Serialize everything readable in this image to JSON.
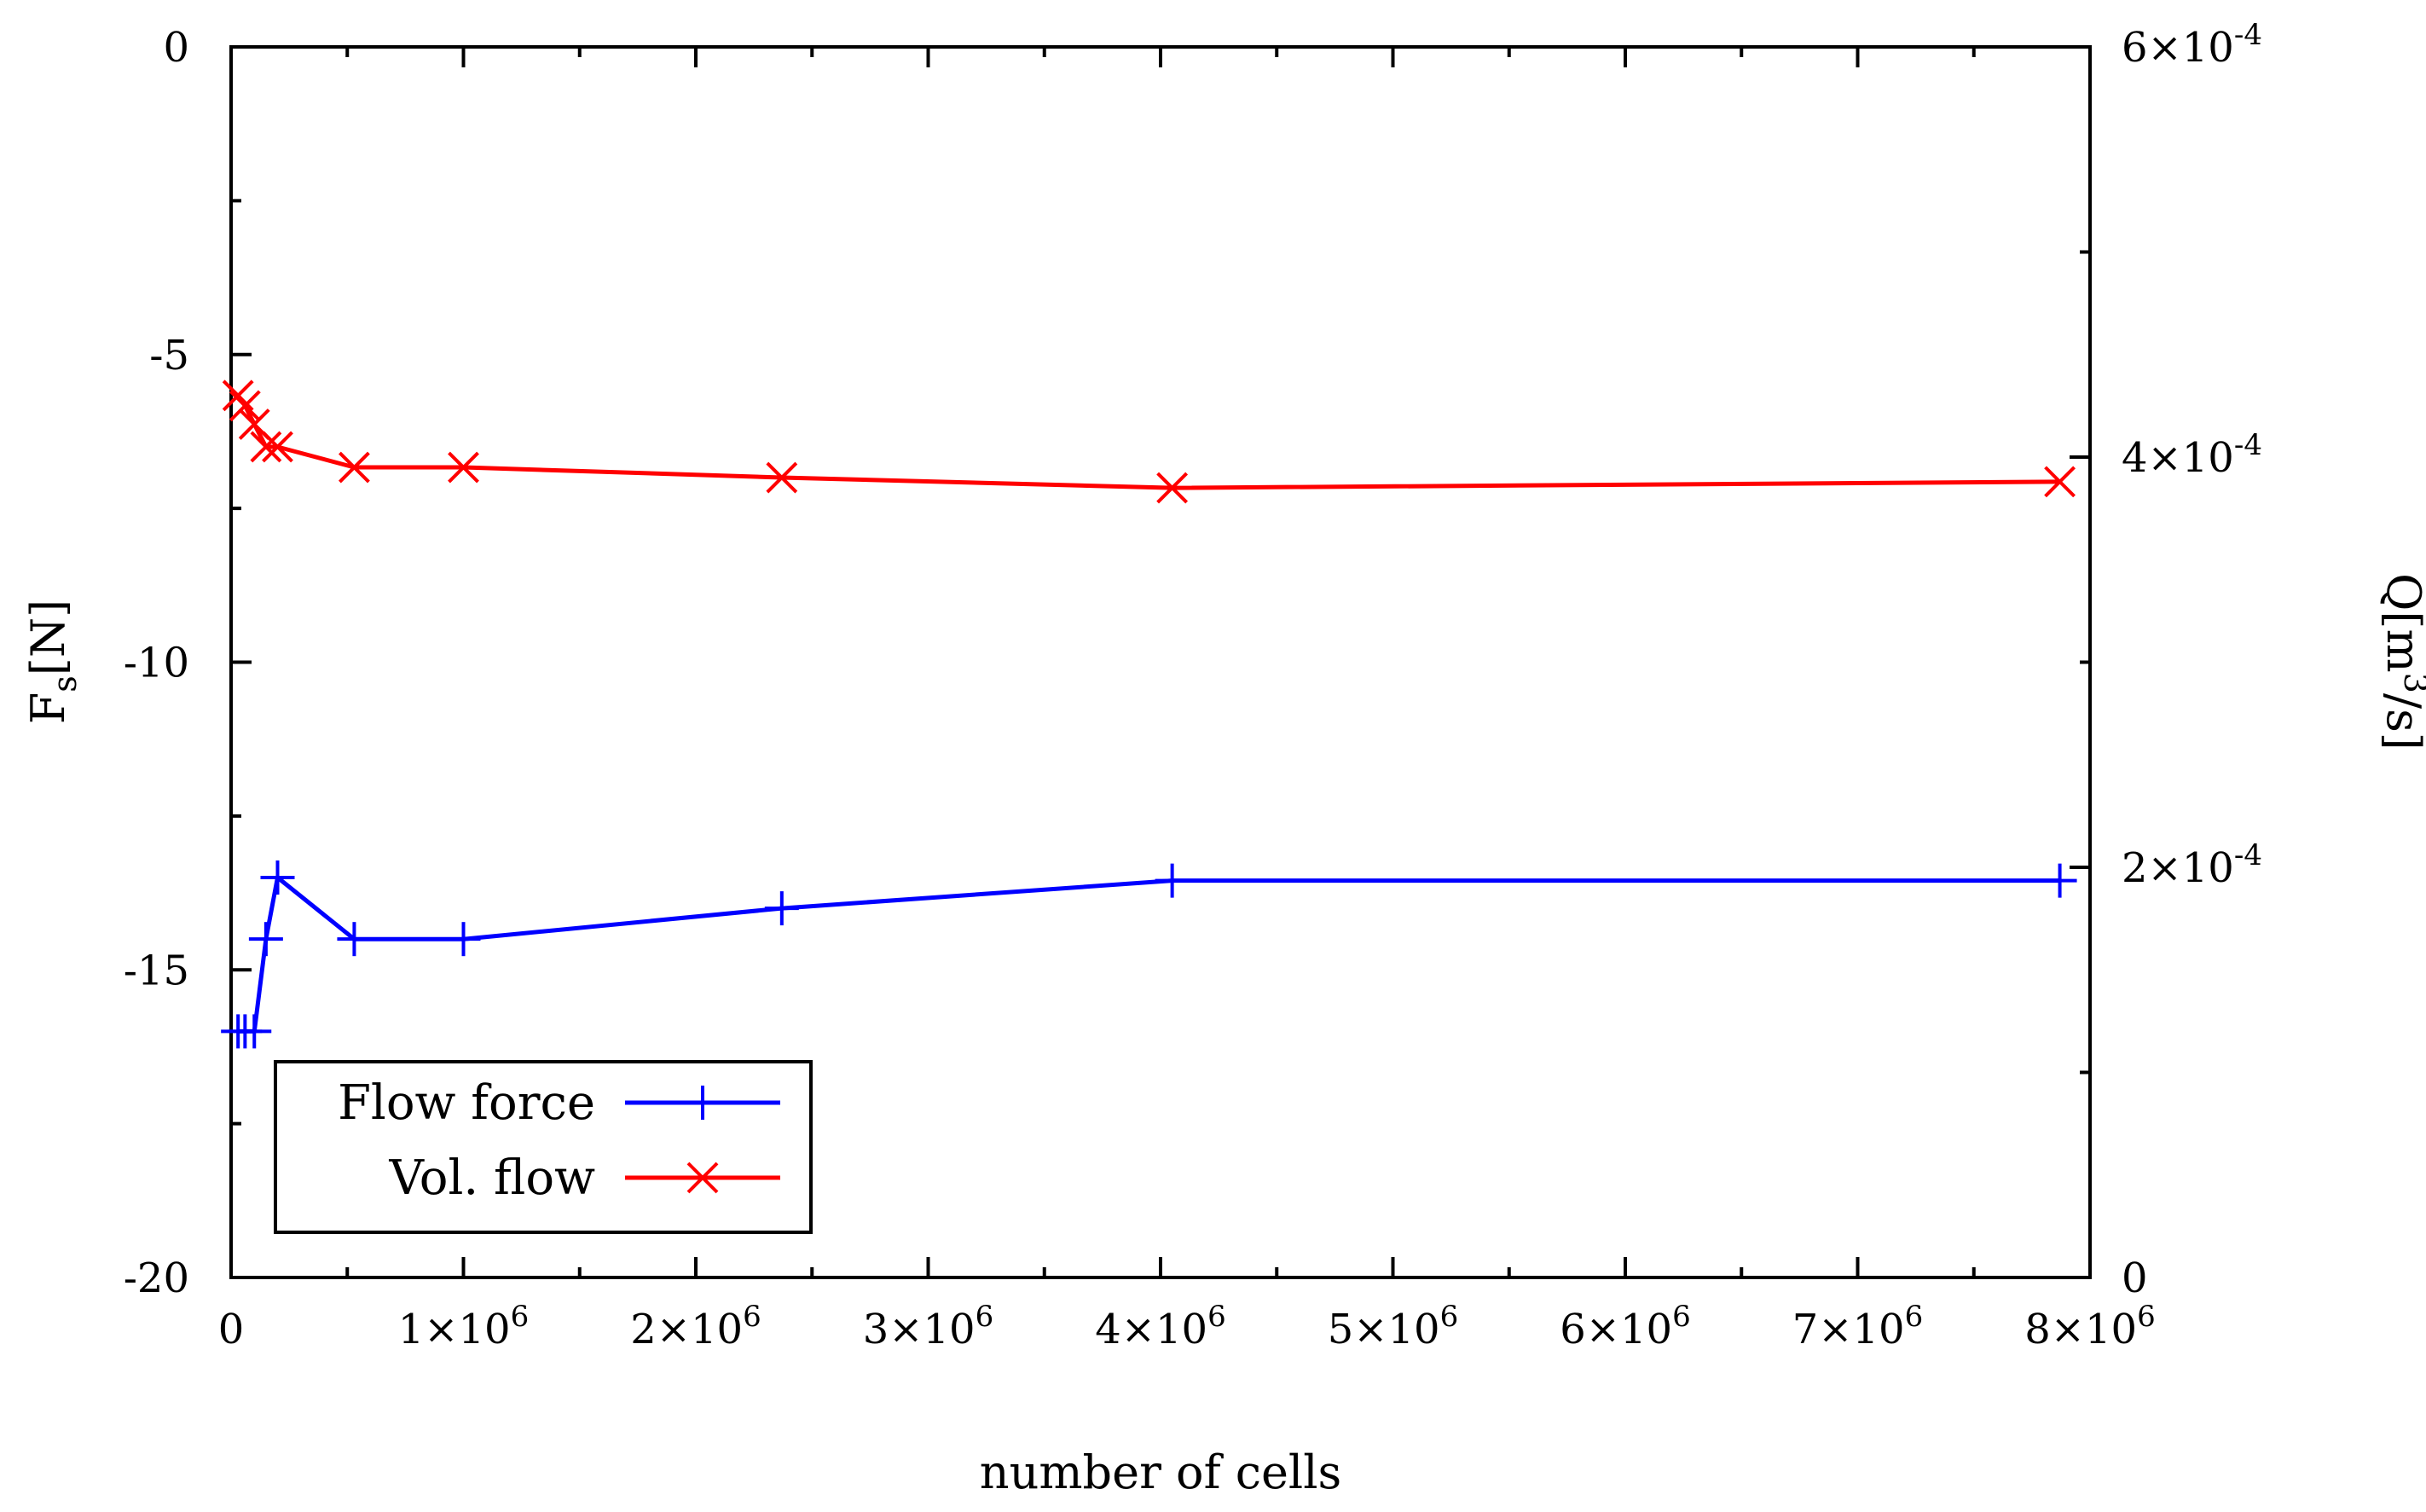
{
  "chart_data": {
    "type": "line",
    "xlabel": "number of cells",
    "ylabel_main": "F",
    "ylabel_sub": "s",
    "ylabel_unit": "[N]",
    "y2label_main": "Q",
    "y2label_unit_open": "[m",
    "y2label_sup": "3",
    "y2label_unit_close": "/s]",
    "xlim": [
      0,
      8000000
    ],
    "ylim": [
      -20,
      0
    ],
    "y2lim": [
      0,
      0.0006
    ],
    "x_ticks": [
      {
        "base": "0",
        "exp": ""
      },
      {
        "base": "1×10",
        "exp": "6"
      },
      {
        "base": "2×10",
        "exp": "6"
      },
      {
        "base": "3×10",
        "exp": "6"
      },
      {
        "base": "4×10",
        "exp": "6"
      },
      {
        "base": "5×10",
        "exp": "6"
      },
      {
        "base": "6×10",
        "exp": "6"
      },
      {
        "base": "7×10",
        "exp": "6"
      },
      {
        "base": "8×10",
        "exp": "6"
      }
    ],
    "y_ticks": [
      "0",
      "-5",
      "-10",
      "-15",
      "-20"
    ],
    "y_tick_values": [
      0,
      -5,
      -10,
      -15,
      -20
    ],
    "y2_ticks": [
      {
        "base": "0",
        "exp": ""
      },
      {
        "base": "2×10",
        "exp": "-4"
      },
      {
        "base": "4×10",
        "exp": "-4"
      },
      {
        "base": "6×10",
        "exp": "-4"
      }
    ],
    "y2_tick_values": [
      0,
      0.0002,
      0.0004,
      0.0006
    ],
    "legend_position": "bottom-left",
    "series": [
      {
        "name": "Flow force",
        "axis": "left",
        "color": "#0000ff",
        "marker": "plus",
        "x": [
          30000,
          60000,
          100000,
          150000,
          200000,
          530000,
          1000000,
          2370000,
          4050000,
          7870000
        ],
        "y": [
          -16.0,
          -16.0,
          -16.0,
          -14.5,
          -13.5,
          -14.5,
          -14.5,
          -14.0,
          -13.55,
          -13.55
        ]
      },
      {
        "name": "Vol. flow",
        "axis": "right",
        "color": "#ff0000",
        "marker": "cross",
        "x": [
          30000,
          60000,
          100000,
          150000,
          200000,
          530000,
          1000000,
          2370000,
          4050000,
          7870000
        ],
        "y": [
          0.00043,
          0.000425,
          0.000416,
          0.000405,
          0.000405,
          0.000395,
          0.000395,
          0.00039,
          0.000385,
          0.000388
        ]
      }
    ]
  }
}
